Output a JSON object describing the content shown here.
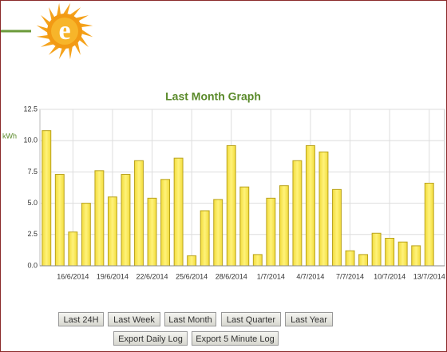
{
  "logo": "e",
  "chart_data": {
    "type": "bar",
    "title": "Last Month Graph",
    "y_label": "kWh",
    "categories": [
      null,
      null,
      "16/6/2014",
      null,
      null,
      "19/6/2014",
      null,
      null,
      "22/6/2014",
      null,
      null,
      "25/6/2014",
      null,
      null,
      "28/6/2014",
      null,
      null,
      "1/7/2014",
      null,
      null,
      "4/7/2014",
      null,
      null,
      "7/7/2014",
      null,
      null,
      "10/7/2014",
      null,
      null,
      "13/7/2014"
    ],
    "values": [
      10.8,
      7.3,
      2.7,
      5.0,
      7.6,
      5.5,
      7.3,
      8.4,
      5.4,
      6.9,
      8.6,
      0.8,
      4.4,
      5.3,
      9.6,
      6.3,
      0.9,
      5.4,
      6.4,
      8.4,
      9.6,
      9.1,
      6.1,
      1.2,
      0.9,
      2.6,
      2.2,
      1.9,
      1.6,
      6.6
    ],
    "color": "#f2dc3c",
    "ylim": [
      0,
      12.5
    ],
    "yticks": [
      {
        "value": 0,
        "label": "0.0"
      },
      2.5,
      {
        "value": 5,
        "label": "5.0"
      },
      7.5,
      {
        "value": 10,
        "label": "10.0"
      },
      12.5
    ],
    "grid": true
  },
  "buttons": {
    "row1": [
      "Last 24H",
      "Last Week",
      "Last Month",
      "Last Quarter",
      "Last Year"
    ],
    "row2": [
      "Export Daily Log",
      "Export 5 Minute Log"
    ]
  }
}
